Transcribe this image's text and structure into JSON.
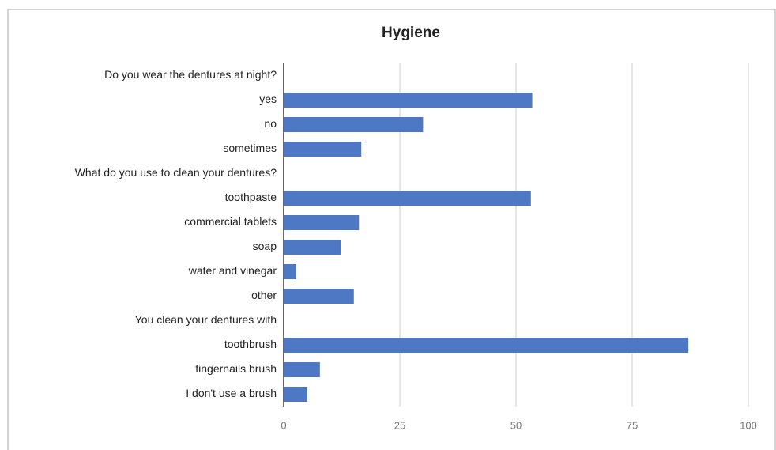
{
  "chart_data": {
    "type": "bar",
    "orientation": "horizontal",
    "title": "Hygiene",
    "categories": [
      "Do you wear the dentures at night?",
      "yes",
      "no",
      "sometimes",
      "What do you use to clean your dentures?",
      "toothpaste",
      "commercial tablets",
      "soap",
      "water and vinegar",
      "other",
      "You clean your dentures with",
      "toothbrush",
      "fingernails brush",
      "I don't use a brush"
    ],
    "values": [
      null,
      53.5,
      30,
      16.7,
      null,
      53.2,
      16.2,
      12.4,
      2.7,
      15.1,
      null,
      87.1,
      7.8,
      5.1
    ],
    "color": "#4f78c4",
    "xlim": [
      0,
      100
    ],
    "xticks": [
      0,
      25,
      50,
      75,
      100
    ],
    "grid": true
  }
}
